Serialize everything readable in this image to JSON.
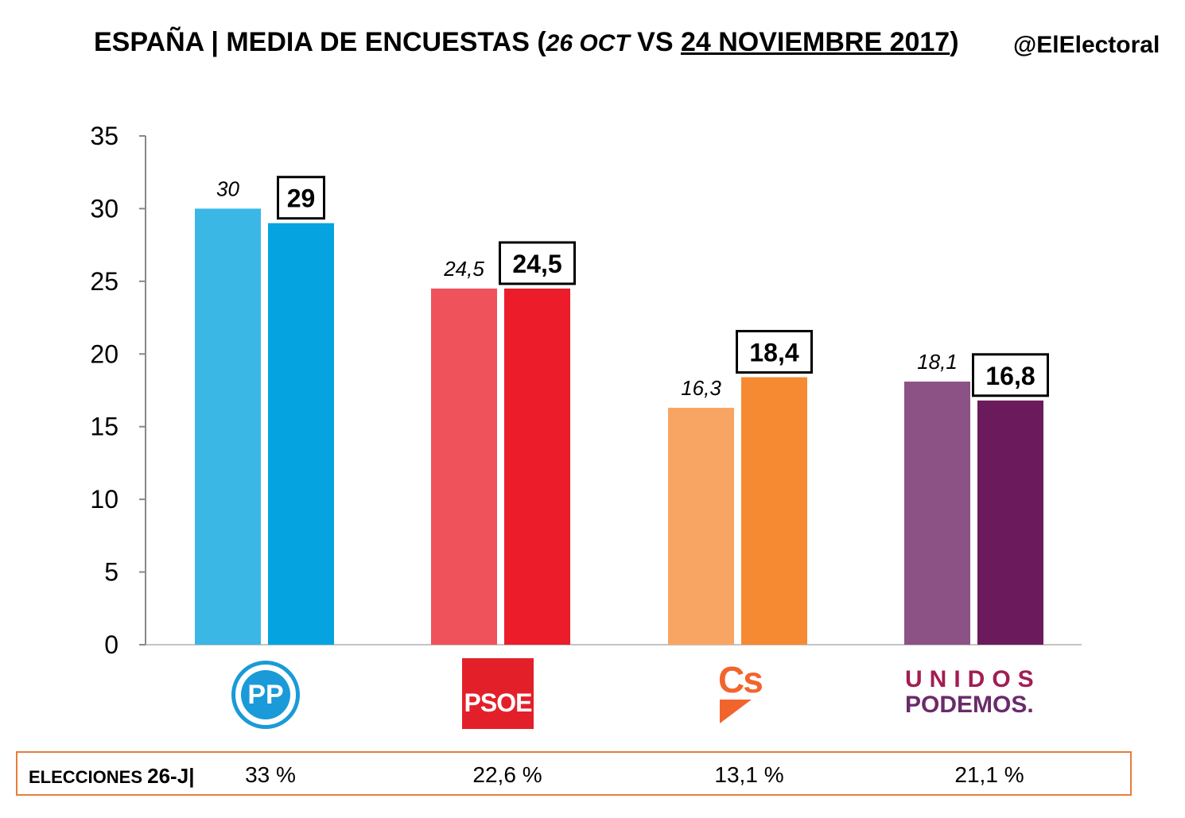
{
  "title": {
    "main": "ESPAÑA | MEDIA DE ENCUESTAS (",
    "date_old": "26 OCT",
    "vs": " VS ",
    "date_new": "24 NOVIEMBRE 2017",
    "close": ")"
  },
  "handle": "@ElElectoral",
  "chart_data": {
    "type": "bar",
    "categories": [
      "PP",
      "PSOE",
      "Cs",
      "Unidos Podemos"
    ],
    "series": [
      {
        "values": [
          30,
          24.5,
          16.3,
          18.1
        ],
        "labels": [
          "30",
          "24,5",
          "16,3",
          "18,1"
        ]
      },
      {
        "values": [
          29,
          24.5,
          18.4,
          16.8
        ],
        "labels": [
          "29",
          "24,5",
          "18,4",
          "16,8"
        ]
      }
    ],
    "colors": {
      "old": [
        "#3bb7e6",
        "#f0525b",
        "#f8a563",
        "#8c5185"
      ],
      "new": [
        "#05a3e0",
        "#ec1c2a",
        "#f58a33",
        "#6b1b5b"
      ]
    },
    "ylim": [
      0,
      35
    ],
    "yticks": [
      0,
      5,
      10,
      15,
      20,
      25,
      30,
      35
    ],
    "grid": false,
    "legend": "none"
  },
  "logos": {
    "pp": "PP",
    "psoe": "PSOE",
    "cs": "Cs",
    "up_top": "UNIDOS",
    "up_bottom": "PODEMOS."
  },
  "results": {
    "label_prefix": "ELECCIONES ",
    "label_big": "26-J",
    "separator": "|",
    "values": [
      "33 %",
      "22,6 %",
      "13,1 %",
      "21,1 %"
    ]
  }
}
